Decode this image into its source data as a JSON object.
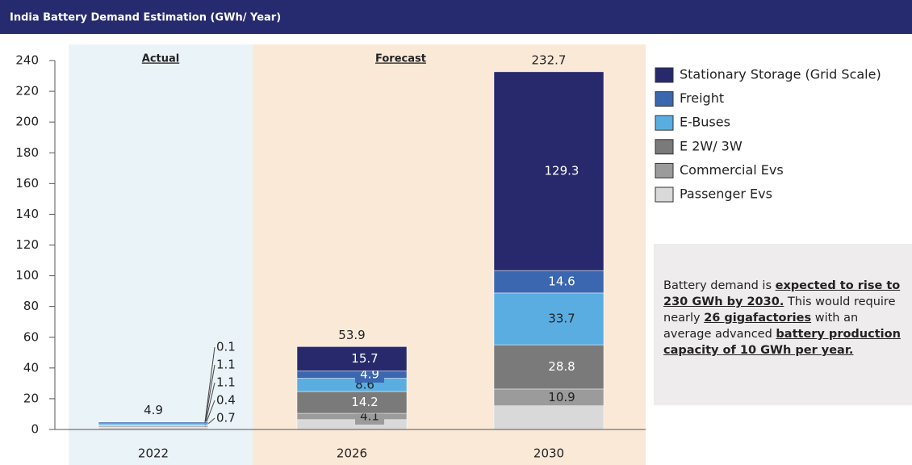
{
  "chart_data": {
    "type": "stacked_bar",
    "title": "India Battery Demand Estimation (GWh/ Year)",
    "categories": [
      "2022",
      "2026",
      "2030"
    ],
    "series": [
      {
        "name": "Passenger Evs",
        "color": "#d9d9d9",
        "values": [
          1.5,
          6.4,
          15.4
        ],
        "show_labels": false
      },
      {
        "name": "Commercial Evs",
        "color": "#9b9b9b",
        "values": [
          0.7,
          4.1,
          10.9
        ],
        "show_labels": true
      },
      {
        "name": "E 2W/ 3W",
        "color": "#7a7a7a",
        "values": [
          0.4,
          14.2,
          28.8
        ],
        "show_labels": true
      },
      {
        "name": "E-Buses",
        "color": "#5aade1",
        "values": [
          1.1,
          8.6,
          33.7
        ],
        "show_labels": true
      },
      {
        "name": "Freight",
        "color": "#3b67b1",
        "values": [
          1.1,
          4.9,
          14.6
        ],
        "show_labels": true
      },
      {
        "name": "Stationary Storage (Grid Scale)",
        "color": "#27296c",
        "values": [
          0.1,
          15.7,
          129.3
        ],
        "show_labels": true
      }
    ],
    "totals": [
      4.9,
      53.9,
      232.7
    ],
    "periods": [
      {
        "label": "Actual",
        "color": "#eaf3f8",
        "from": 0,
        "to": 0
      },
      {
        "label": "Forecast",
        "color": "#fbe9d8",
        "from": 1,
        "to": 2
      }
    ],
    "ylim": [
      0,
      240
    ],
    "yticks": [
      0,
      20,
      40,
      60,
      80,
      100,
      120,
      140,
      160,
      180,
      200,
      220,
      240
    ],
    "note": [
      {
        "text": "Battery demand is ",
        "bold": false
      },
      {
        "text": "expected to rise to 230 GWh by 2030.",
        "bold": true
      },
      {
        "text": " This would require nearly ",
        "bold": false
      },
      {
        "text": "26 gigafactories",
        "bold": true
      },
      {
        "text": " with an average advanced ",
        "bold": false
      },
      {
        "text": "battery production capacity of 10 GWh per year.",
        "bold": true
      }
    ]
  }
}
